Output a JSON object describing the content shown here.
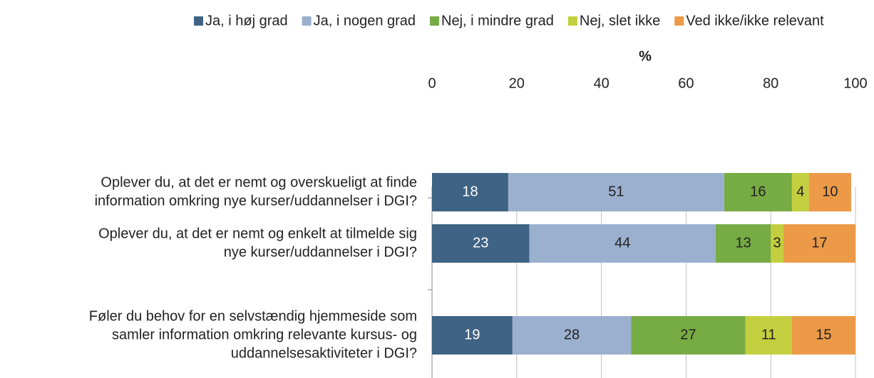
{
  "chart_data": {
    "type": "stacked-barh",
    "x_label": "%",
    "categories": [
      [
        "Oplever du, at det er nemt og overskueligt at finde",
        "information omkring nye kurser/uddannelser i DGI?"
      ],
      [
        "Oplever du, at det er nemt og enkelt at tilmelde sig",
        "nye kurser/uddannelser i DGI?"
      ],
      [
        "Føler du behov for en selvstændig hjemmeside som",
        "samler information omkring relevante kursus- og",
        "uddannelsesaktiviteter i DGI?"
      ]
    ],
    "series": [
      {
        "name": "Ja, i høj grad",
        "color": "#3f6384",
        "values": [
          18,
          23,
          19
        ]
      },
      {
        "name": "Ja, i nogen grad",
        "color": "#9bb0cf",
        "values": [
          51,
          44,
          28
        ]
      },
      {
        "name": "Nej, i mindre grad",
        "color": "#77ab43",
        "values": [
          16,
          13,
          27
        ]
      },
      {
        "name": "Nej, slet ikke",
        "color": "#c4cf3f",
        "values": [
          4,
          3,
          11
        ]
      },
      {
        "name": "Ved ikke/ikke relevant",
        "color": "#ec9a48",
        "values": [
          10,
          17,
          15
        ]
      }
    ],
    "xlim": [
      0,
      100
    ],
    "xticks": [
      0,
      20,
      40,
      60,
      80,
      100
    ],
    "grid": true,
    "legend": "top"
  }
}
